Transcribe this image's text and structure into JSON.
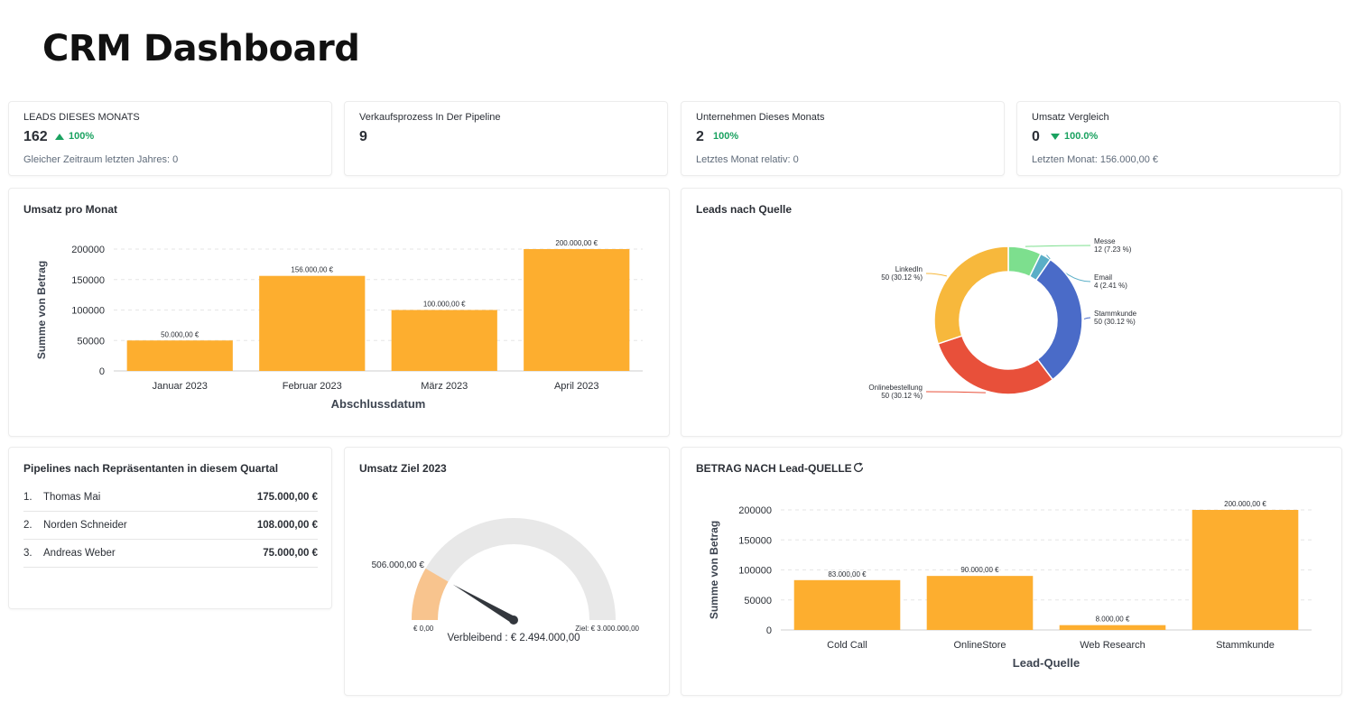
{
  "page": {
    "title": "CRM Dashboard"
  },
  "kpis": [
    {
      "label": "LEADS DIESES MONATS",
      "value": "162",
      "trend": "100%",
      "trend_dir": "up",
      "sub": "Gleicher Zeitraum letzten Jahres: 0"
    },
    {
      "label": "Verkaufsprozess In Der Pipeline",
      "value": "9",
      "trend": "",
      "trend_dir": "none",
      "sub": ""
    },
    {
      "label": "Unternehmen Dieses Monats",
      "value": "2",
      "trend": "100%",
      "trend_dir": "none",
      "sub": "Letztes Monat relativ: 0"
    },
    {
      "label": "Umsatz Vergleich",
      "value": "0",
      "trend": "100.0%",
      "trend_dir": "down",
      "sub": "Letzten Monat: 156.000,00 €"
    }
  ],
  "revenue_chart": {
    "title": "Umsatz pro Monat",
    "chart_data": {
      "type": "bar",
      "categories": [
        "Januar 2023",
        "Februar 2023",
        "März 2023",
        "April 2023"
      ],
      "values": [
        50000,
        156000,
        100000,
        200000
      ],
      "data_labels": [
        "50.000,00 €",
        "156.000,00 €",
        "100.000,00 €",
        "200.000,00 €"
      ],
      "ylabel": "Summe von Betrag",
      "xlabel": "Abschlussdatum",
      "yticks": [
        "0",
        "50000",
        "100000",
        "150000",
        "200000"
      ],
      "ylim": [
        0,
        200000
      ],
      "color": "#fdae2f"
    }
  },
  "leads_chart": {
    "title": "Leads nach Quelle",
    "chart_data": {
      "type": "pie",
      "slices": [
        {
          "name": "Messe",
          "value": 12,
          "label": "12 (7.23 %)",
          "color": "#7ddf8e"
        },
        {
          "name": "Email",
          "value": 4,
          "label": "4 (2.41 %)",
          "color": "#5aaec7"
        },
        {
          "name": "Stammkunde",
          "value": 50,
          "label": "50 (30.12 %)",
          "color": "#4a6bc8"
        },
        {
          "name": "Onlinebestellung",
          "value": 50,
          "label": "50 (30.12 %)",
          "color": "#e8503a"
        },
        {
          "name": "LinkedIn",
          "value": 50,
          "label": "50 (30.12 %)",
          "color": "#f7b83c"
        }
      ]
    }
  },
  "reps": {
    "title": "Pipelines nach Repräsentanten in diesem Quartal",
    "items": [
      {
        "num": "1.",
        "name": "Thomas Mai",
        "amount": "175.000,00 €"
      },
      {
        "num": "2.",
        "name": "Norden Schneider",
        "amount": "108.000,00 €"
      },
      {
        "num": "3.",
        "name": "Andreas Weber",
        "amount": "75.000,00 €"
      }
    ]
  },
  "goal": {
    "title": "Umsatz Ziel 2023",
    "current_label": "506.000,00 €",
    "min_label": "€ 0,00",
    "max_label": "Ziel: € 3.000.000,00",
    "remaining_label": "Verbleibend : € 2.494.000,00",
    "chart_data": {
      "type": "gauge",
      "value": 506000,
      "min": 0,
      "max": 3000000,
      "fill_color": "#f8c48e",
      "track_color": "#e8e8e8"
    }
  },
  "lead_source_chart": {
    "title": "BETRAG NACH Lead-QUELLE",
    "chart_data": {
      "type": "bar",
      "categories": [
        "Cold Call",
        "OnlineStore",
        "Web Research",
        "Stammkunde"
      ],
      "values": [
        83000,
        90000,
        8000,
        200000
      ],
      "data_labels": [
        "83.000,00 €",
        "90.000,00 €",
        "8.000,00 €",
        "200.000,00 €"
      ],
      "ylabel": "Summe von Betrag",
      "xlabel": "Lead-Quelle",
      "yticks": [
        "0",
        "50000",
        "100000",
        "150000",
        "200000"
      ],
      "ylim": [
        0,
        200000
      ],
      "color": "#fdae2f"
    }
  }
}
